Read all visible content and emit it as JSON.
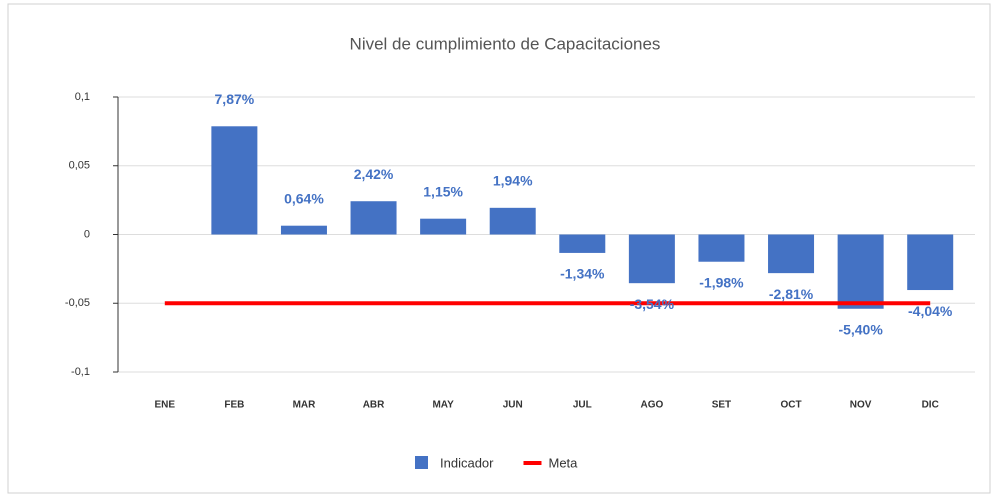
{
  "chart_data": {
    "type": "bar",
    "title": "Nivel de cumplimiento de Capacitaciones",
    "categories": [
      "ENE",
      "FEB",
      "MAR",
      "ABR",
      "MAY",
      "JUN",
      "JUL",
      "AGO",
      "SET",
      "OCT",
      "NOV",
      "DIC"
    ],
    "series": [
      {
        "name": "Indicador",
        "type": "bar",
        "color": "#4472c4",
        "values": [
          null,
          0.0787,
          0.0064,
          0.0242,
          0.0115,
          0.0194,
          -0.0134,
          -0.0354,
          -0.0198,
          -0.0281,
          -0.054,
          -0.0404
        ],
        "value_labels": [
          null,
          "7,87%",
          "0,64%",
          "2,42%",
          "1,15%",
          "1,94%",
          "-1,34%",
          "-3,54%",
          "-1,98%",
          "-2,81%",
          "-5,40%",
          "-4,04%"
        ]
      },
      {
        "name": "Meta",
        "type": "line",
        "color": "#ff0000",
        "values": [
          -0.05,
          -0.05,
          -0.05,
          -0.05,
          -0.05,
          -0.05,
          -0.05,
          -0.05,
          -0.05,
          -0.05,
          -0.05,
          -0.05
        ]
      }
    ],
    "ylim": [
      -0.1,
      0.1
    ],
    "yticks": [
      {
        "value": -0.1,
        "label": "-0,1"
      },
      {
        "value": -0.05,
        "label": "-0,05"
      },
      0,
      {
        "value": 0.05,
        "label": "0,05"
      },
      {
        "value": 0.1,
        "label": "0,1"
      }
    ],
    "grid": true,
    "legend": "bottom"
  }
}
